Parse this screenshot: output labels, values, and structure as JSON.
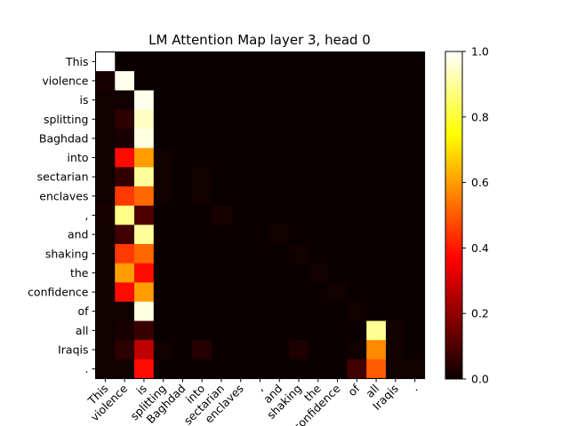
{
  "chart_data": {
    "type": "heatmap",
    "title": "LM Attention Map layer 3, head 0",
    "x_labels": [
      "This",
      "violence",
      "is",
      "splitting",
      "Baghdad",
      "into",
      "sectarian",
      "enclaves",
      ",",
      "and",
      "shaking",
      "the",
      "confidence",
      "of",
      "all",
      "Iraqis",
      "."
    ],
    "y_labels": [
      "This",
      "violence",
      "is",
      "splitting",
      "Baghdad",
      "into",
      "sectarian",
      "enclaves",
      ",",
      "and",
      "shaking",
      "the",
      "confidence",
      "of",
      "all",
      "Iraqis",
      "."
    ],
    "values": [
      [
        1.0,
        0,
        0,
        0,
        0,
        0,
        0,
        0,
        0,
        0,
        0,
        0,
        0,
        0,
        0,
        0,
        0
      ],
      [
        0.02,
        0.98,
        0,
        0,
        0,
        0,
        0,
        0,
        0,
        0,
        0,
        0,
        0,
        0,
        0,
        0,
        0
      ],
      [
        0.01,
        0.01,
        0.98,
        0,
        0,
        0,
        0,
        0,
        0,
        0,
        0,
        0,
        0,
        0,
        0,
        0,
        0
      ],
      [
        0.01,
        0.05,
        0.94,
        0,
        0,
        0,
        0,
        0,
        0,
        0,
        0,
        0,
        0,
        0,
        0,
        0,
        0
      ],
      [
        0.01,
        0.02,
        0.97,
        0,
        0,
        0,
        0,
        0,
        0,
        0,
        0,
        0,
        0,
        0,
        0,
        0,
        0
      ],
      [
        0.01,
        0.38,
        0.6,
        0.01,
        0,
        0,
        0,
        0,
        0,
        0,
        0,
        0,
        0,
        0,
        0,
        0,
        0
      ],
      [
        0.01,
        0.06,
        0.9,
        0.01,
        0,
        0.01,
        0,
        0,
        0,
        0,
        0,
        0,
        0,
        0,
        0,
        0,
        0
      ],
      [
        0.01,
        0.45,
        0.52,
        0.01,
        0,
        0.01,
        0,
        0,
        0,
        0,
        0,
        0,
        0,
        0,
        0,
        0,
        0
      ],
      [
        0.02,
        0.88,
        0.1,
        0,
        0,
        0,
        0.02,
        0,
        0,
        0,
        0,
        0,
        0,
        0,
        0,
        0,
        0
      ],
      [
        0.01,
        0.08,
        0.9,
        0,
        0,
        0,
        0,
        0,
        0,
        0.01,
        0,
        0,
        0,
        0,
        0,
        0,
        0
      ],
      [
        0.01,
        0.45,
        0.52,
        0,
        0,
        0,
        0,
        0,
        0,
        0,
        0.01,
        0,
        0,
        0,
        0,
        0,
        0
      ],
      [
        0.01,
        0.6,
        0.38,
        0,
        0,
        0,
        0,
        0,
        0,
        0,
        0,
        0.01,
        0,
        0,
        0,
        0,
        0
      ],
      [
        0.01,
        0.38,
        0.6,
        0,
        0,
        0,
        0,
        0,
        0,
        0,
        0,
        0,
        0.01,
        0,
        0,
        0,
        0
      ],
      [
        0.01,
        0.01,
        0.97,
        0,
        0,
        0,
        0,
        0,
        0,
        0,
        0,
        0,
        0,
        0.01,
        0,
        0,
        0
      ],
      [
        0.01,
        0.02,
        0.07,
        0,
        0,
        0,
        0,
        0,
        0,
        0,
        0,
        0,
        0,
        0,
        0.89,
        0.01,
        0
      ],
      [
        0.01,
        0.05,
        0.27,
        0.01,
        0,
        0.04,
        0,
        0,
        0,
        0,
        0.03,
        0,
        0,
        0.01,
        0.57,
        0.01,
        0
      ],
      [
        0.01,
        0.01,
        0.38,
        0,
        0,
        0,
        0,
        0,
        0,
        0,
        0,
        0,
        0,
        0.08,
        0.5,
        0.01,
        0.01
      ]
    ],
    "colormap": "hot",
    "colorbar": {
      "range": [
        0.0,
        1.0
      ],
      "ticks": [
        "0.0",
        "0.2",
        "0.4",
        "0.6",
        "0.8",
        "1.0"
      ]
    },
    "grid": false,
    "legend": "colorbar-right"
  }
}
